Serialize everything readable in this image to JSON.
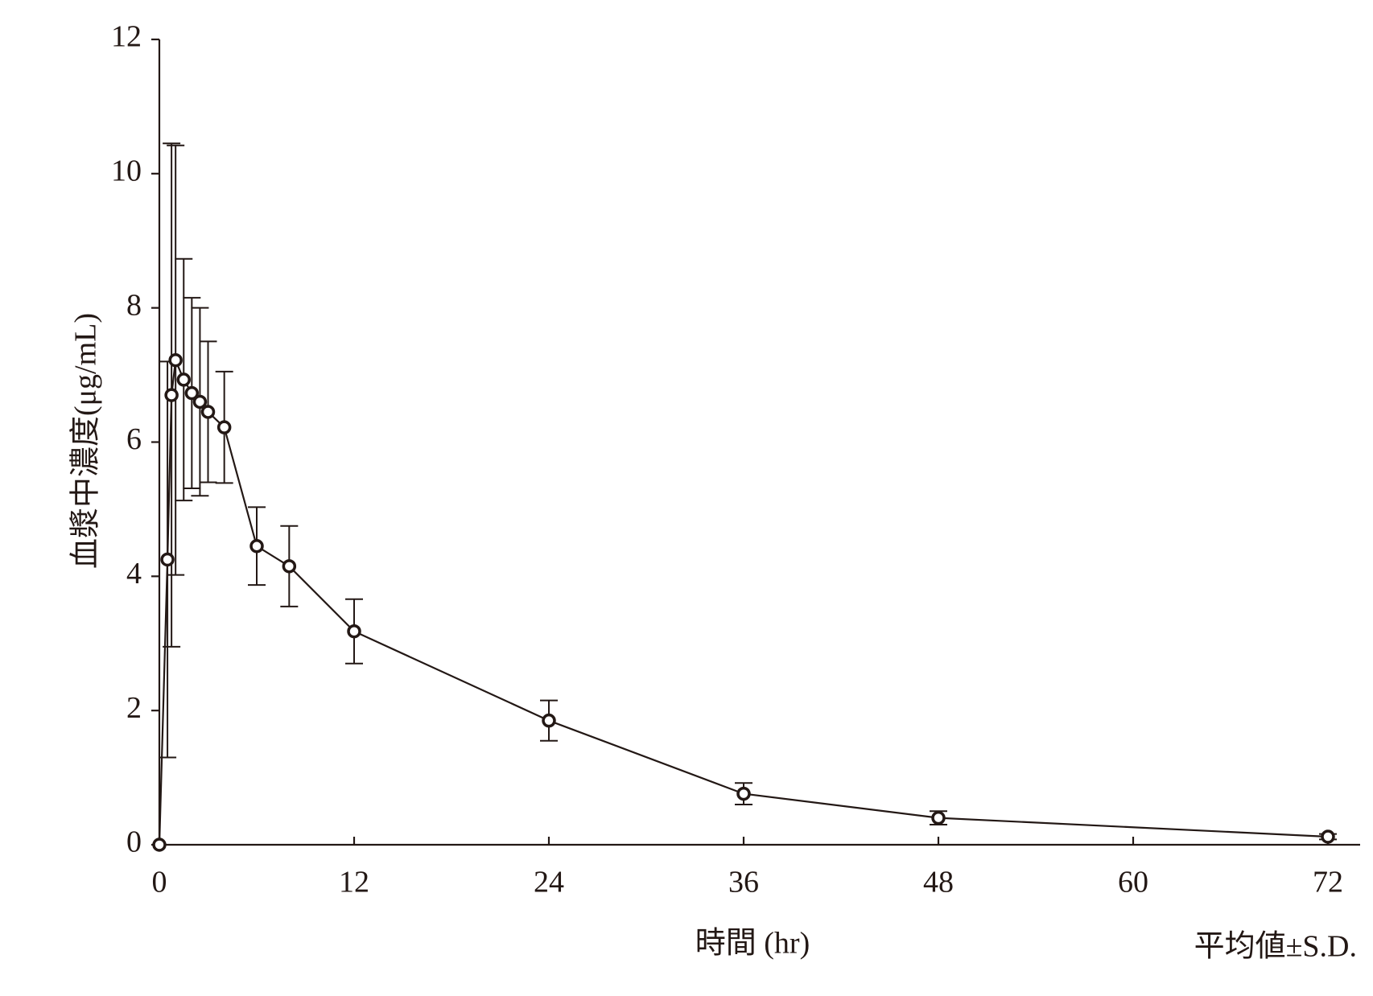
{
  "chart_data": {
    "type": "line",
    "y_label": "血漿中濃度(μg/mL)",
    "x_label": "時間 (hr)",
    "note": "平均値±S.D.",
    "x": [
      0,
      0.5,
      0.75,
      1,
      1.5,
      2,
      2.5,
      3,
      4,
      6,
      8,
      12,
      24,
      36,
      48,
      72
    ],
    "values": [
      0,
      4.25,
      6.7,
      7.22,
      6.93,
      6.73,
      6.6,
      6.45,
      6.22,
      4.45,
      4.15,
      3.18,
      1.85,
      0.76,
      0.4,
      0.12
    ],
    "errors": [
      0,
      2.95,
      3.75,
      3.2,
      1.8,
      1.42,
      1.4,
      1.05,
      0.83,
      0.58,
      0.6,
      0.48,
      0.3,
      0.16,
      0.1,
      0.04
    ],
    "color": "#231815",
    "xlim": [
      0,
      72
    ],
    "xticks": [
      0,
      12,
      24,
      36,
      48,
      60,
      72
    ],
    "ylim": [
      0,
      12
    ],
    "yticks": [
      0,
      2,
      4,
      6,
      8,
      10,
      12
    ]
  }
}
